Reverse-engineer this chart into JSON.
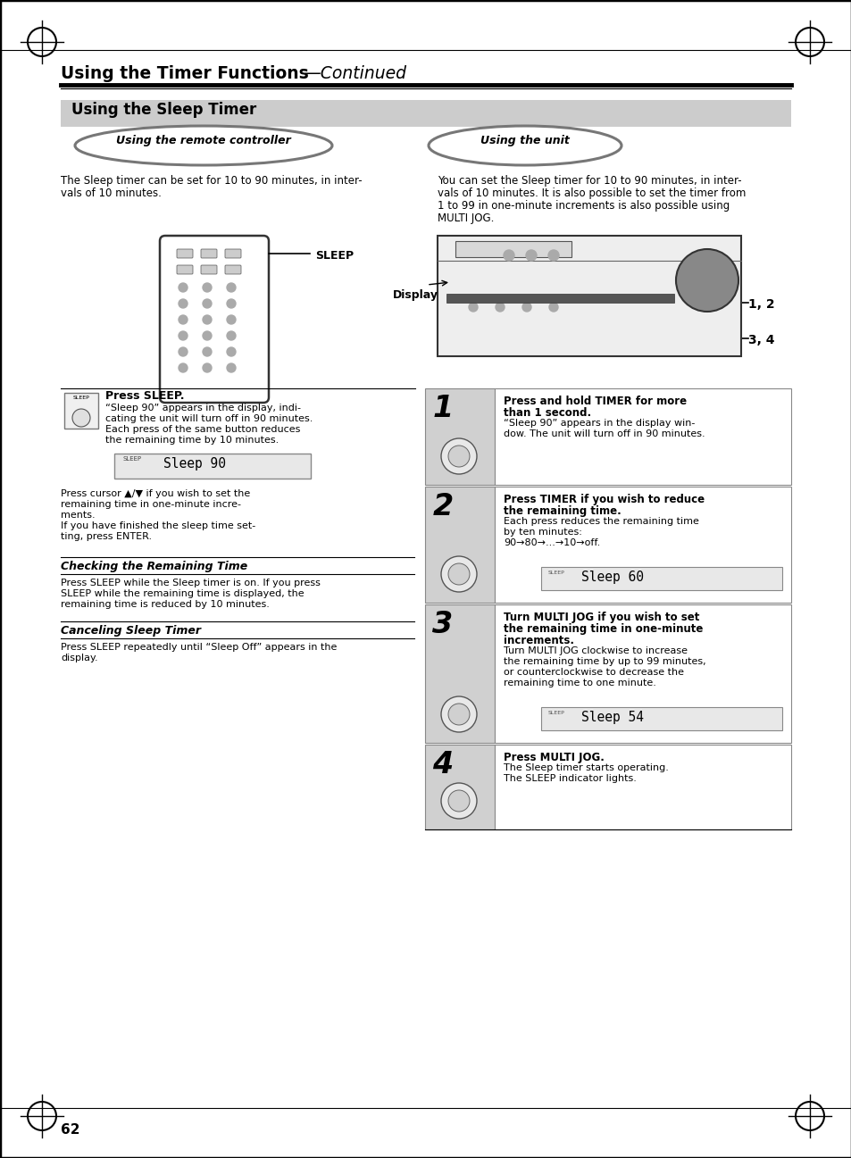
{
  "page_title_bold": "Using the Timer Functions",
  "page_title_dash": "—",
  "page_title_italic": "Continued",
  "section_title": "Using the Sleep Timer",
  "subsection_left": "Using the remote controller",
  "subsection_right": "Using the unit",
  "left_body1_line1": "The Sleep timer can be set for 10 to 90 minutes, in inter-",
  "left_body1_line2": "vals of 10 minutes.",
  "right_body1_line1": "You can set the Sleep timer for 10 to 90 minutes, in inter-",
  "right_body1_line2": "vals of 10 minutes. It is also possible to set the timer from",
  "right_body1_line3": "1 to 99 in one-minute increments is also possible using",
  "right_body1_line4": "MULTI JOG.",
  "sleep_label": "SLEEP",
  "display_label": "Display",
  "label_12": "1, 2",
  "label_34": "3, 4",
  "press_sleep_title": "Press SLEEP.",
  "press_sleep_b1": "“Sleep 90” appears in the display, indi-",
  "press_sleep_b2": "cating the unit will turn off in 90 minutes.",
  "press_sleep_b3": "Each press of the same button reduces",
  "press_sleep_b4": "the remaining time by 10 minutes.",
  "display_text1": "Sleep 90",
  "cursor_text1": "Press cursor ▲/▼ if you wish to set the",
  "cursor_text2": "remaining time in one-minute incre-",
  "cursor_text3": "ments.",
  "cursor_text4": "If you have finished the sleep time set-",
  "cursor_text5": "ting, press ENTER.",
  "step1_t1": "Press and hold TIMER for more",
  "step1_t2": "than 1 second.",
  "step1_b1": "“Sleep 90” appears in the display win-",
  "step1_b2": "dow. The unit will turn off in 90 minutes.",
  "step2_t1": "Press TIMER if you wish to reduce",
  "step2_t2": "the remaining time.",
  "step2_b1": "Each press reduces the remaining time",
  "step2_b2": "by ten minutes:",
  "step2_b3": "90→80→...→10→off.",
  "display_text2": "Sleep 60",
  "step3_t1": "Turn MULTI JOG if you wish to set",
  "step3_t2": "the remaining time in one-minute",
  "step3_t3": "increments.",
  "step3_b1": "Turn MULTI JOG clockwise to increase",
  "step3_b2": "the remaining time by up to 99 minutes,",
  "step3_b3": "or counterclockwise to decrease the",
  "step3_b4": "remaining time to one minute.",
  "display_text3": "Sleep 54",
  "step4_t1": "Press MULTI JOG.",
  "step4_b1": "The Sleep timer starts operating.",
  "step4_b2": "The SLEEP indicator lights.",
  "checking_title": "Checking the Remaining Time",
  "checking_b1": "Press SLEEP while the Sleep timer is on. If you press",
  "checking_b2": "SLEEP while the remaining time is displayed, the",
  "checking_b3": "remaining time is reduced by 10 minutes.",
  "canceling_title": "Canceling Sleep Timer",
  "canceling_b1": "Press SLEEP repeatedly until “Sleep Off” appears in the",
  "canceling_b2": "display.",
  "page_number": "62",
  "bg_color": "#ffffff",
  "section_bg": "#cccccc",
  "text_color": "#000000",
  "step_bg": "#d0d0d0",
  "step_border": "#888888",
  "display_bg": "#e8e8e8"
}
